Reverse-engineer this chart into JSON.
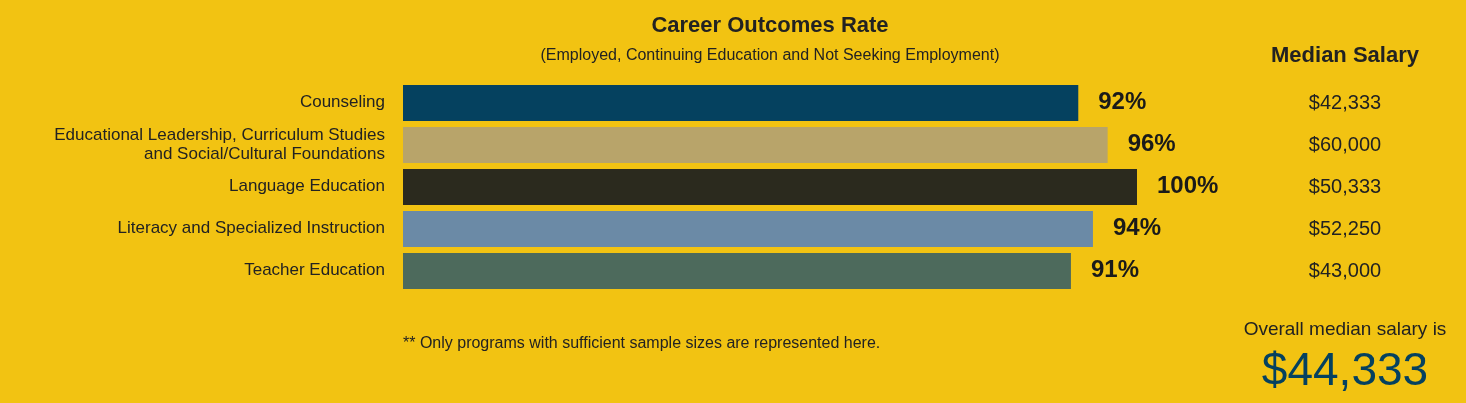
{
  "chart_data": {
    "type": "bar",
    "orientation": "horizontal",
    "title": "Career Outcomes Rate",
    "subtitle": "(Employed, Continuing Education and Not Seeking Employment)",
    "categories": [
      "Counseling",
      "Educational Leadership, Curriculum Studies and  Social/Cultural Foundations",
      "Language Education",
      "Literacy and Specialized Instruction",
      "Teacher Education"
    ],
    "values": [
      92,
      96,
      100,
      94,
      91
    ],
    "colors": [
      "#05415f",
      "#b8a46a",
      "#2b2a1e",
      "#6b8aa6",
      "#4d6a5c"
    ],
    "value_labels": [
      "92%",
      "96%",
      "100%",
      "94%",
      "91%"
    ],
    "annotations": [
      "Median Salary",
      "$42,333",
      "$60,000",
      "$50,333",
      "$52,250",
      "$43,000",
      "** Only programs with sufficient sample sizes are represented here.",
      "Overall median salary is",
      "$44,333"
    ],
    "grid": false,
    "legend": false
  }
}
